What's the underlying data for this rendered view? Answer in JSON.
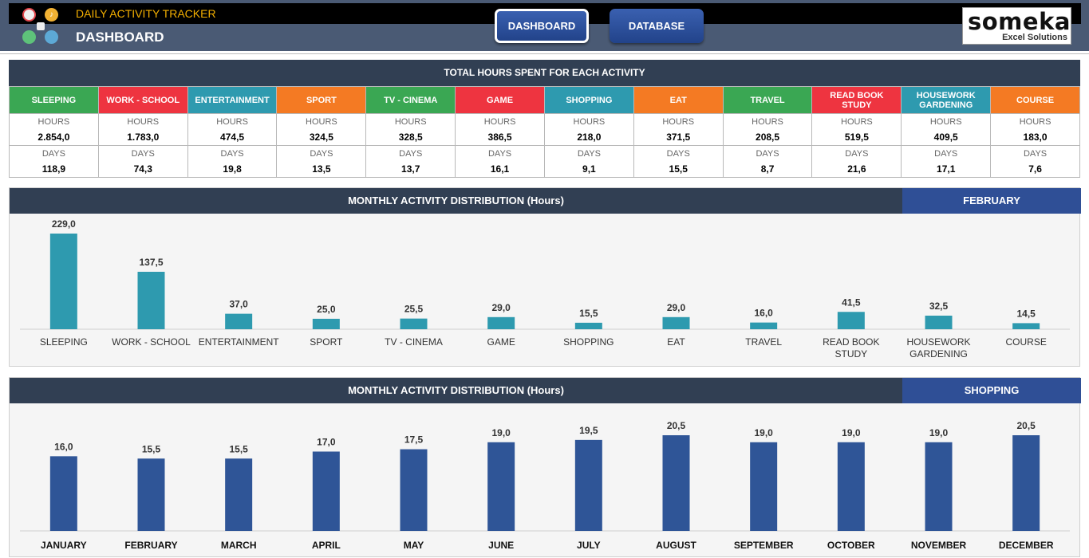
{
  "header": {
    "app_title": "DAILY ACTIVITY TRACKER",
    "page_title": "DASHBOARD",
    "nav": [
      "DASHBOARD",
      "DATABASE"
    ],
    "brand_name": "someka",
    "brand_sub": "Excel Solutions"
  },
  "summary": {
    "title": "TOTAL HOURS SPENT FOR EACH ACTIVITY",
    "hours_label": "HOURS",
    "days_label": "DAYS",
    "activities": [
      {
        "name": "SLEEPING",
        "color": "#3aa753",
        "hours": "2.854,0",
        "days": "118,9"
      },
      {
        "name": "WORK - SCHOOL",
        "color": "#ee3440",
        "hours": "1.783,0",
        "days": "74,3"
      },
      {
        "name": "ENTERTAINMENT",
        "color": "#2e9aaf",
        "hours": "474,5",
        "days": "19,8"
      },
      {
        "name": "SPORT",
        "color": "#f47a23",
        "hours": "324,5",
        "days": "13,5"
      },
      {
        "name": "TV - CINEMA",
        "color": "#3aa753",
        "hours": "328,5",
        "days": "13,7"
      },
      {
        "name": "GAME",
        "color": "#ee3440",
        "hours": "386,5",
        "days": "16,1"
      },
      {
        "name": "SHOPPING",
        "color": "#2e9aaf",
        "hours": "218,0",
        "days": "9,1"
      },
      {
        "name": "EAT",
        "color": "#f47a23",
        "hours": "371,5",
        "days": "15,5"
      },
      {
        "name": "TRAVEL",
        "color": "#3aa753",
        "hours": "208,5",
        "days": "8,7"
      },
      {
        "name": "READ BOOK STUDY",
        "color": "#ee3440",
        "hours": "519,5",
        "days": "21,6"
      },
      {
        "name": "HOUSEWORK GARDENING",
        "color": "#2e9aaf",
        "hours": "409,5",
        "days": "17,1"
      },
      {
        "name": "COURSE",
        "color": "#f47a23",
        "hours": "183,0",
        "days": "7,6"
      }
    ]
  },
  "chart_data": [
    {
      "type": "bar",
      "title": "MONTHLY ACTIVITY DISTRIBUTION (Hours)",
      "selector": "FEBRUARY",
      "color": "#2e9aaf",
      "categories": [
        "SLEEPING",
        "WORK - SCHOOL",
        "ENTERTAINMENT",
        "SPORT",
        "TV - CINEMA",
        "GAME",
        "SHOPPING",
        "EAT",
        "TRAVEL",
        "READ BOOK STUDY",
        "HOUSEWORK GARDENING",
        "COURSE"
      ],
      "values": [
        229.0,
        137.5,
        37.0,
        25.0,
        25.5,
        29.0,
        15.5,
        29.0,
        16.0,
        41.5,
        32.5,
        14.5
      ],
      "labels": [
        "229,0",
        "137,5",
        "37,0",
        "25,0",
        "25,5",
        "29,0",
        "15,5",
        "29,0",
        "16,0",
        "41,5",
        "32,5",
        "14,5"
      ]
    },
    {
      "type": "bar",
      "title": "MONTHLY ACTIVITY DISTRIBUTION (Hours)",
      "selector": "SHOPPING",
      "color": "#2f5597",
      "categories": [
        "JANUARY",
        "FEBRUARY",
        "MARCH",
        "APRIL",
        "MAY",
        "JUNE",
        "JULY",
        "AUGUST",
        "SEPTEMBER",
        "OCTOBER",
        "NOVEMBER",
        "DECEMBER"
      ],
      "values": [
        16.0,
        15.5,
        15.5,
        17.0,
        17.5,
        19.0,
        19.5,
        20.5,
        19.0,
        19.0,
        19.0,
        20.5
      ],
      "labels": [
        "16,0",
        "15,5",
        "15,5",
        "17,0",
        "17,5",
        "19,0",
        "19,5",
        "20,5",
        "19,0",
        "19,0",
        "19,0",
        "20,5"
      ]
    }
  ]
}
